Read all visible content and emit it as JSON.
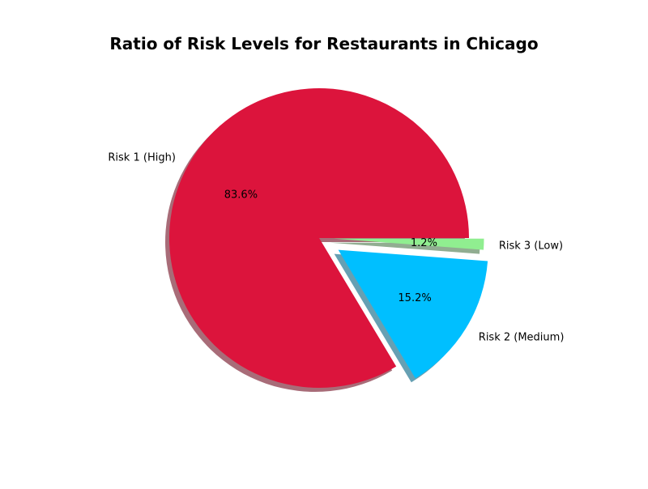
{
  "chart_data": {
    "type": "pie",
    "title": "Ratio of Risk Levels for Restaurants in Chicago",
    "start_angle_deg": 0,
    "direction": "counterclockwise",
    "shadow": true,
    "slices": [
      {
        "label": "Risk 1 (High)",
        "value": 83.6,
        "pct_label": "83.6%",
        "color": "#DC143C",
        "explode": 0.0
      },
      {
        "label": "Risk 2 (Medium)",
        "value": 15.2,
        "pct_label": "15.2%",
        "color": "#00BFFF",
        "explode": 0.15
      },
      {
        "label": "Risk 3 (Low)",
        "value": 1.2,
        "pct_label": "1.2%",
        "color": "#90EE90",
        "explode": 0.1
      }
    ]
  }
}
